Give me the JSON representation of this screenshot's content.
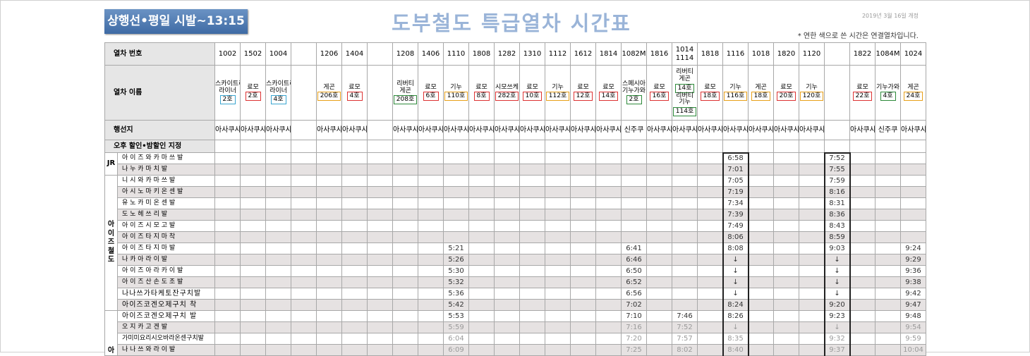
{
  "header": {
    "badge": "상행선•평일 시발~13:15",
    "title": "도부철도 특급열차 시간표",
    "revision": "2019년 3월 16일 개정",
    "note": "* 연한 색으로 쓴 시간은 연결열차입니다."
  },
  "row_labels": {
    "number": "열차 번호",
    "name": "열차 이름",
    "destination": "행선지",
    "discount": "오후 할인•밤할인 지정"
  },
  "groups": {
    "jr": "JR",
    "aizu": "아이즈철도",
    "next": "아"
  },
  "trains": {
    "numbers": [
      "1002",
      "1502",
      "1004",
      "",
      "1206",
      "1404",
      "",
      "1208",
      "1406",
      "1110",
      "1808",
      "1282",
      "1310",
      "1112",
      "1612",
      "1814",
      "1082M",
      "1816",
      "1014\n1114",
      "1818",
      "1116",
      "1018",
      "1820",
      "1120",
      "",
      "1822",
      "1084M",
      "1024"
    ],
    "names": [
      {
        "name": "스카이트리\n라이너",
        "tag": "2호",
        "color": "blue"
      },
      {
        "name": "료모",
        "tag": "2호",
        "color": "red"
      },
      {
        "name": "스카이트리\n라이너",
        "tag": "4호",
        "color": "blue"
      },
      {
        "name": "",
        "tag": "",
        "color": ""
      },
      {
        "name": "게곤",
        "tag": "206호",
        "color": "orange"
      },
      {
        "name": "료모",
        "tag": "4호",
        "color": "red"
      },
      {
        "name": "",
        "tag": "",
        "color": ""
      },
      {
        "name": "리버티\n게곤",
        "tag": "208호",
        "color": "green"
      },
      {
        "name": "료모",
        "tag": "6호",
        "color": "red"
      },
      {
        "name": "기누",
        "tag": "110호",
        "color": "orange"
      },
      {
        "name": "료모",
        "tag": "8호",
        "color": "red"
      },
      {
        "name": "시모쓰케",
        "tag": "282호",
        "color": "red"
      },
      {
        "name": "료모",
        "tag": "10호",
        "color": "red"
      },
      {
        "name": "기누",
        "tag": "112호",
        "color": "orange"
      },
      {
        "name": "료모",
        "tag": "12호",
        "color": "red"
      },
      {
        "name": "료모",
        "tag": "14호",
        "color": "red"
      },
      {
        "name": "스페시아\n기누가와",
        "tag": "2호",
        "color": "green"
      },
      {
        "name": "료모",
        "tag": "16호",
        "color": "red"
      },
      {
        "name": "리버티\n게곤",
        "tag": "14호",
        "color": "green",
        "name2": "리버티\n기누",
        "tag2": "114호"
      },
      {
        "name": "료모",
        "tag": "18호",
        "color": "red"
      },
      {
        "name": "기누",
        "tag": "116호",
        "color": "orange"
      },
      {
        "name": "게곤",
        "tag": "18호",
        "color": "orange"
      },
      {
        "name": "료모",
        "tag": "20호",
        "color": "red"
      },
      {
        "name": "기누",
        "tag": "120호",
        "color": "orange"
      },
      {
        "name": "",
        "tag": "",
        "color": ""
      },
      {
        "name": "료모",
        "tag": "22호",
        "color": "red"
      },
      {
        "name": "기누가와",
        "tag": "4호",
        "color": "green"
      },
      {
        "name": "게곤",
        "tag": "24호",
        "color": "orange"
      }
    ],
    "destinations": [
      "아사쿠사",
      "아사쿠사",
      "아사쿠사",
      "",
      "아사쿠사",
      "아사쿠사",
      "",
      "아사쿠사",
      "아사쿠사",
      "아사쿠사",
      "아사쿠사",
      "아사쿠사",
      "아사쿠사",
      "아사쿠사",
      "아사쿠사",
      "아사쿠사",
      "신주쿠",
      "아사쿠사",
      "아사쿠사",
      "아사쿠사",
      "아사쿠사",
      "아사쿠사",
      "아사쿠사",
      "아사쿠사",
      "",
      "아사쿠사",
      "신주쿠",
      "아사쿠사"
    ]
  },
  "stations": [
    {
      "name": "아 이 즈 와 카 마 쓰  발",
      "times": {
        "20": "6:58",
        "24": "7:52"
      }
    },
    {
      "name": "나  누  카  마  치   발",
      "times": {
        "20": "7:01",
        "24": "7:55"
      }
    },
    {
      "name": "니 시 와 카 마 쓰  발",
      "times": {
        "20": "7:05",
        "24": "7:59"
      }
    },
    {
      "name": "아 시 노 마 키 온 센 발",
      "times": {
        "20": "7:19",
        "24": "8:16"
      }
    },
    {
      "name": "유  노  카  미  온  센  발",
      "times": {
        "20": "7:34",
        "24": "8:31"
      }
    },
    {
      "name": "도  노  헤  쓰  리   발",
      "times": {
        "20": "7:39",
        "24": "8:36"
      }
    },
    {
      "name": "아  이  즈  시  모  고  발",
      "times": {
        "20": "7:49",
        "24": "8:43"
      }
    },
    {
      "name": "아  이  즈  타  지  마  착",
      "times": {
        "20": "8:06",
        "24": "8:59"
      }
    },
    {
      "name": "아  이  즈  타  지  마  발",
      "times": {
        "9": "5:21",
        "16": "6:41",
        "20": "8:08",
        "24": "9:03",
        "27": "9:24"
      }
    },
    {
      "name": "나  카  아  라  이   발",
      "times": {
        "9": "5:26",
        "16": "6:46",
        "20": "↓",
        "24": "↓",
        "27": "9:29"
      }
    },
    {
      "name": "아 이 즈 아 라 카 이 발",
      "times": {
        "9": "5:30",
        "16": "6:50",
        "20": "↓",
        "24": "↓",
        "27": "9:36"
      }
    },
    {
      "name": "아 이 즈 산 손 도 조  발",
      "times": {
        "9": "5:32",
        "16": "6:52",
        "20": "↓",
        "24": "↓",
        "27": "9:38"
      }
    },
    {
      "name": "나나쓰가타케토잔구치발",
      "times": {
        "9": "5:36",
        "16": "6:56",
        "20": "↓",
        "24": "↓",
        "27": "9:42"
      }
    },
    {
      "name": "아이즈코겐오제구치 착",
      "times": {
        "9": "5:42",
        "16": "7:02",
        "20": "8:24",
        "24": "9:20",
        "27": "9:47"
      }
    },
    {
      "name": "아이즈코겐오제구치 발",
      "times": {
        "9": "5:53",
        "16": "7:10",
        "18": "7:46",
        "20": "8:26",
        "24": "9:23",
        "27": "9:48"
      }
    },
    {
      "name": "오  지  카  고  겐   발",
      "times": {
        "9": "5:59",
        "16": "7:16",
        "18": "7:52",
        "20": "↓",
        "24": "↓",
        "27": "9:54"
      }
    },
    {
      "name": "가미미요리시오바라온센구치발",
      "times": {
        "9": "6:04",
        "16": "7:20",
        "18": "7:57",
        "20": "8:35",
        "24": "9:32",
        "27": "9:59"
      }
    },
    {
      "name": "나 나 쓰 와 라 이 발",
      "times": {
        "9": "6:09",
        "16": "7:25",
        "18": "8:02",
        "20": "8:40",
        "24": "9:37",
        "27": "10:04"
      }
    }
  ]
}
